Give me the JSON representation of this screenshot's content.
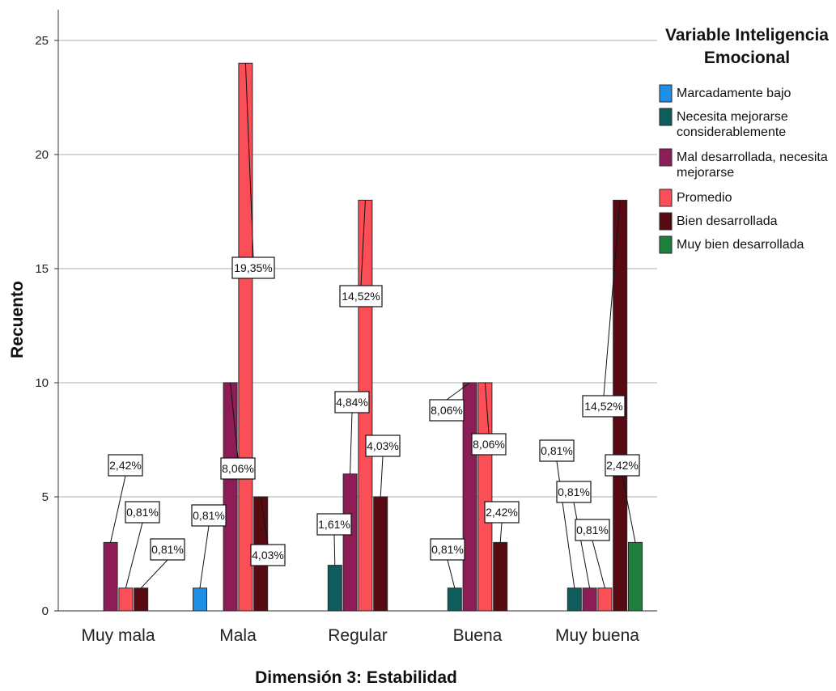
{
  "chart_data": {
    "type": "bar",
    "title": "",
    "xlabel": "Dimensión 3: Estabilidad",
    "ylabel": "Recuento",
    "ylim": [
      0,
      25
    ],
    "yticks": [
      0,
      5,
      10,
      15,
      20,
      25
    ],
    "grid": true,
    "legend_position": "top-right",
    "legend_title": [
      "Variable Inteligencia",
      "Emocional"
    ],
    "categories": [
      "Muy mala",
      "Mala",
      "Regular",
      "Buena",
      "Muy buena"
    ],
    "series": [
      {
        "name": "Marcadamente bajo",
        "name_lines": [
          "Marcadamente bajo"
        ],
        "color": "#1f8fe5",
        "values": [
          0,
          1,
          0,
          0,
          0
        ],
        "labels": [
          "",
          "0,81%",
          "",
          "",
          ""
        ]
      },
      {
        "name": "Necesita mejorarse considerablemente",
        "name_lines": [
          "Necesita mejorarse",
          "considerablemente"
        ],
        "color": "#0f5c5c",
        "values": [
          0,
          0,
          2,
          1,
          1
        ],
        "labels": [
          "",
          "",
          "1,61%",
          "0,81%",
          "0,81%"
        ]
      },
      {
        "name": "Mal desarrollada, necesita mejorarse",
        "name_lines": [
          "Mal desarrollada, necesita",
          "mejorarse"
        ],
        "color": "#8e1d57",
        "values": [
          3,
          10,
          6,
          10,
          1
        ],
        "labels": [
          "2,42%",
          "8,06%",
          "4,84%",
          "8,06%",
          "0,81%"
        ]
      },
      {
        "name": "Promedio",
        "name_lines": [
          "Promedio"
        ],
        "color": "#fb4f57",
        "values": [
          1,
          24,
          18,
          10,
          1
        ],
        "labels": [
          "0,81%",
          "19,35%",
          "14,52%",
          "8,06%",
          "0,81%"
        ]
      },
      {
        "name": "Bien desarrollada",
        "name_lines": [
          "Bien desarrollada"
        ],
        "color": "#580a12",
        "values": [
          1,
          5,
          5,
          3,
          18
        ],
        "labels": [
          "0,81%",
          "4,03%",
          "4,03%",
          "2,42%",
          "14,52%"
        ]
      },
      {
        "name": "Muy bien desarrollada",
        "name_lines": [
          "Muy bien desarrollada"
        ],
        "color": "#1e7e3b",
        "values": [
          0,
          0,
          0,
          0,
          3
        ],
        "labels": [
          "",
          "",
          "",
          "",
          "2,42%"
        ]
      }
    ]
  }
}
